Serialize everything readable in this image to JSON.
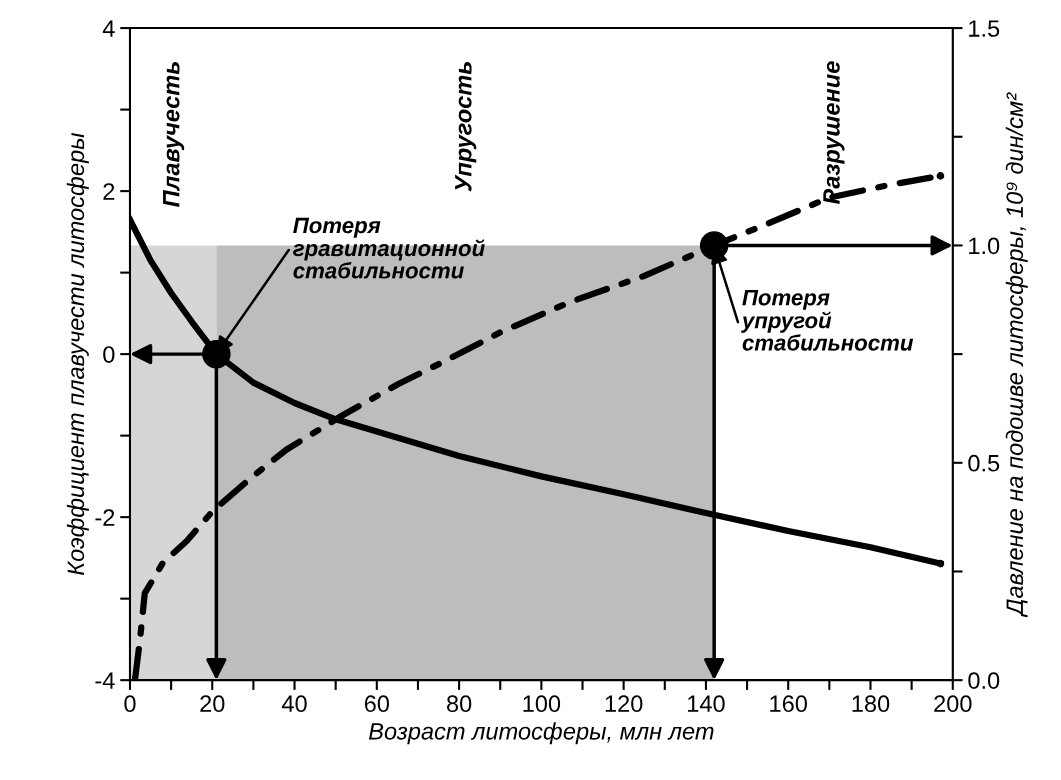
{
  "chart_data": {
    "type": "line",
    "xlabel": "Возраст литосферы, млн лет",
    "ylabel": "Коэффициент плавучести литосферы",
    "y2label": "Давление на подошве литосферы, 10⁹ дин/см²",
    "xlim": [
      0,
      200
    ],
    "xticks": [
      0,
      {
        "value": 10,
        "label": null
      },
      20,
      {
        "value": 30,
        "label": null
      },
      40,
      {
        "value": 50,
        "label": null
      },
      60,
      {
        "value": 70,
        "label": null
      },
      80,
      {
        "value": 90,
        "label": null
      },
      100,
      {
        "value": 110,
        "label": null
      },
      120,
      {
        "value": 130,
        "label": null
      },
      140,
      {
        "value": 150,
        "label": null
      },
      160,
      {
        "value": 170,
        "label": null
      },
      180,
      {
        "value": 190,
        "label": null
      },
      200
    ],
    "ylim": [
      -4,
      4
    ],
    "yticks": [
      -4,
      {
        "value": -3,
        "label": null
      },
      -2,
      {
        "value": -1,
        "label": null
      },
      0,
      {
        "value": 1,
        "label": null
      },
      2,
      {
        "value": 3,
        "label": null
      },
      4
    ],
    "y2lim": [
      0,
      1.5
    ],
    "y2ticks": [
      {
        "value": 0,
        "label": "0.0"
      },
      {
        "value": 0.25,
        "label": null
      },
      {
        "value": 0.5,
        "label": "0.5"
      },
      {
        "value": 0.75,
        "label": null
      },
      {
        "value": 1.0,
        "label": "1.0"
      },
      {
        "value": 1.25,
        "label": null
      },
      {
        "value": 1.5,
        "label": "1.5"
      }
    ],
    "grid": false,
    "series": [
      {
        "color": "#000000",
        "line_style": "solid",
        "x": [
          0,
          5,
          10,
          15,
          21,
          30,
          40,
          50,
          60,
          70,
          80,
          100,
          120,
          140,
          160,
          180,
          197
        ],
        "values": [
          1.65,
          1.15,
          0.75,
          0.4,
          0,
          -0.35,
          -0.6,
          -0.8,
          -0.95,
          -1.1,
          -1.25,
          -1.5,
          -1.72,
          -1.95,
          -2.17,
          -2.37,
          -2.57
        ]
      },
      {
        "color": "#000000",
        "line_style": "dashdot",
        "axis": "y2",
        "x": [
          1.2,
          2.4,
          3.6,
          8,
          13.8,
          20.2,
          30,
          38,
          51.8,
          65,
          77.8,
          90,
          107,
          125,
          142,
          155,
          170,
          185,
          197
        ],
        "values": [
          0,
          0.09,
          0.2,
          0.27,
          0.32,
          0.39,
          0.47,
          0.53,
          0.61,
          0.68,
          0.74,
          0.8,
          0.87,
          0.93,
          1.0,
          1.05,
          1.11,
          1.14,
          1.16
        ]
      },
      {
        "type": "scatter",
        "marker": "circle",
        "color": "#000000",
        "x": [
          21
        ],
        "values": [
          0
        ]
      },
      {
        "type": "scatter",
        "marker": "circle",
        "color": "#000000",
        "axis": "y2",
        "x": [
          142
        ],
        "values": [
          1.0
        ]
      }
    ],
    "bands": [
      {
        "axis": "x",
        "from": 0,
        "to": 21,
        "label": "Плавучесть",
        "color": "#d6d6d6"
      },
      {
        "axis": "x",
        "from": 21,
        "to": 142,
        "label": "Упругость",
        "color": "#bdbdbd"
      }
    ],
    "annotations": [
      "Разрушение",
      {
        "text": "Потеря\nгравитационной\nстабильности",
        "x": 21,
        "y": 0
      },
      {
        "text": "Потеря\nупругой\nстабильности",
        "x": 142,
        "y": 1.33
      }
    ]
  }
}
